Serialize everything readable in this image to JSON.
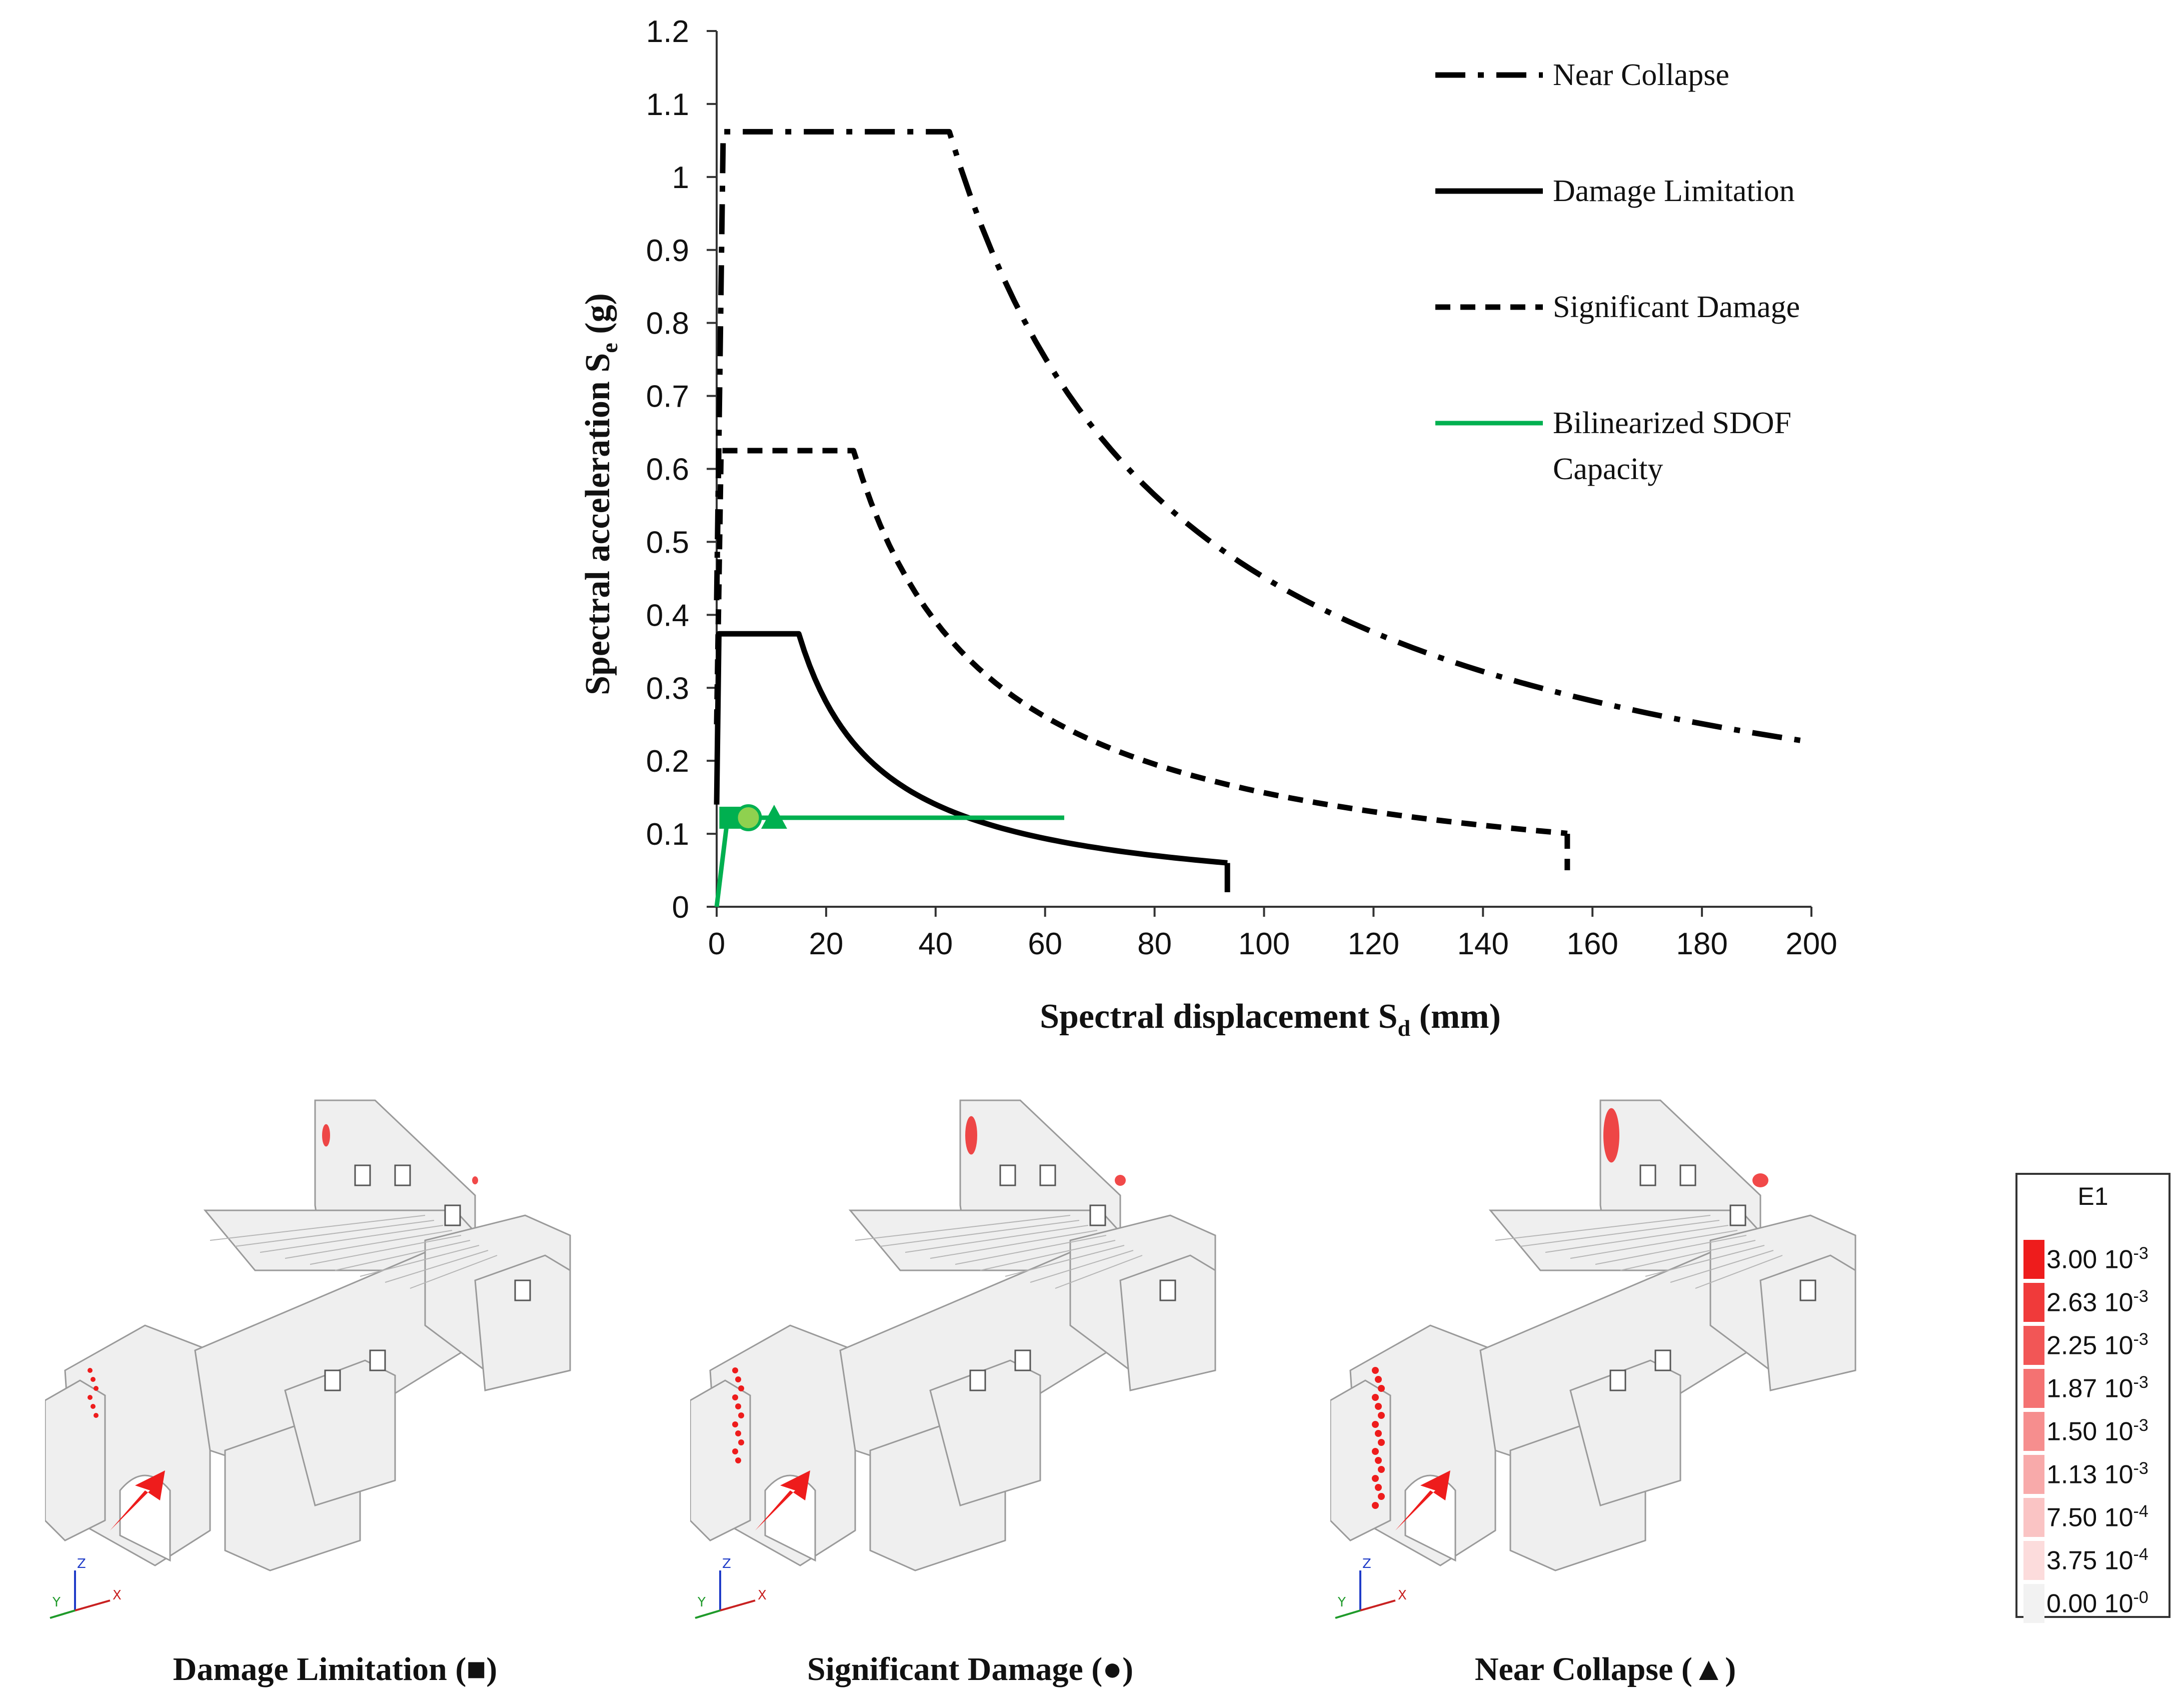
{
  "chart_data": {
    "type": "line",
    "xlabel_main": "Spectral displacement S",
    "xlabel_sub": "d",
    "xlabel_unit": " (mm)",
    "ylabel_main": "Spectral acceleration S",
    "ylabel_sub": "e",
    "ylabel_unit": " (g)",
    "xlim": [
      0,
      200
    ],
    "ylim": [
      0,
      1.2
    ],
    "xticks": [
      "0",
      "20",
      "40",
      "60",
      "80",
      "100",
      "120",
      "140",
      "160",
      "180",
      "200"
    ],
    "yticks": [
      "0",
      "0.1",
      "0.2",
      "0.3",
      "0.4",
      "0.5",
      "0.6",
      "0.7",
      "0.8",
      "0.9",
      "1",
      "1.1",
      "1.2"
    ],
    "series": [
      {
        "name": "Near Collapse",
        "style": "dashdot",
        "color": "#000000",
        "plateau": 1.062,
        "corner_x": [
          1.2,
          42.5
        ],
        "end_x": 200,
        "x": [
          0,
          1.2,
          42.5,
          50,
          60,
          70,
          80,
          90,
          100,
          120,
          140,
          160,
          180,
          200
        ],
        "y": [
          0.42,
          1.062,
          1.062,
          0.9,
          0.752,
          0.644,
          0.564,
          0.501,
          0.451,
          0.376,
          0.322,
          0.282,
          0.251,
          0.225
        ]
      },
      {
        "name": "Damage Limitation",
        "style": "solid",
        "color": "#000000",
        "plateau": 0.374,
        "corner_x": [
          0.4,
          15
        ],
        "end_x": 93.3,
        "x": [
          0,
          0.4,
          15,
          20,
          30,
          40,
          50,
          60,
          70,
          80,
          93.3
        ],
        "y": [
          0.14,
          0.374,
          0.374,
          0.28,
          0.187,
          0.14,
          0.112,
          0.093,
          0.08,
          0.07,
          0.06
        ]
      },
      {
        "name": "Significant Damage",
        "style": "dashed",
        "color": "#000000",
        "plateau": 0.625,
        "corner_x": [
          0.8,
          25
        ],
        "end_x": 155.4,
        "x": [
          0,
          0.8,
          25,
          30,
          40,
          50,
          60,
          80,
          100,
          120,
          140,
          155.4
        ],
        "y": [
          0.25,
          0.625,
          0.625,
          0.521,
          0.391,
          0.313,
          0.26,
          0.195,
          0.156,
          0.13,
          0.112,
          0.1
        ]
      },
      {
        "name": "Bilinearized SDOF",
        "name_line2": "Capacity",
        "style": "solid",
        "color": "#00b050",
        "x": [
          0,
          2,
          63.5
        ],
        "y": [
          0,
          0.122,
          0.122
        ]
      }
    ],
    "markers": [
      {
        "shape": "square",
        "x": 2.5,
        "y": 0.122,
        "label": "Damage Limitation"
      },
      {
        "shape": "circle",
        "x": 5.8,
        "y": 0.122,
        "label": "Significant Damage"
      },
      {
        "shape": "triangle",
        "x": 10.5,
        "y": 0.122,
        "label": "Near Collapse"
      }
    ],
    "vertical_drops": [
      {
        "series": "Damage Limitation",
        "x": 93.3,
        "y_from": 0.06,
        "y_to": 0.02
      },
      {
        "series": "Significant Damage",
        "x": 155.4,
        "y_from": 0.1,
        "y_to": 0.05
      }
    ],
    "legend_position": "top-right"
  },
  "panels": [
    {
      "caption": "Damage Limitation (■)",
      "axis_labels": {
        "x": "X",
        "y": "Y",
        "z": "Z"
      }
    },
    {
      "caption": "Significant Damage (●)",
      "axis_labels": {
        "x": "X",
        "y": "Y",
        "z": "Z"
      }
    },
    {
      "caption": "Near Collapse (▲)",
      "axis_labels": {
        "x": "X",
        "y": "Y",
        "z": "Z"
      }
    }
  ],
  "colorbar": {
    "title": "E1",
    "entries": [
      {
        "mantissa": "3.00 10",
        "exp": "-3",
        "color": "#ee1c1c"
      },
      {
        "mantissa": "2.63 10",
        "exp": "-3",
        "color": "#f03a3a"
      },
      {
        "mantissa": "2.25 10",
        "exp": "-3",
        "color": "#f25656"
      },
      {
        "mantissa": "1.87 10",
        "exp": "-3",
        "color": "#f47272"
      },
      {
        "mantissa": "1.50 10",
        "exp": "-3",
        "color": "#f68e8e"
      },
      {
        "mantissa": "1.13 10",
        "exp": "-3",
        "color": "#f8aaaa"
      },
      {
        "mantissa": "7.50 10",
        "exp": "-4",
        "color": "#fac4c4"
      },
      {
        "mantissa": "3.75 10",
        "exp": "-4",
        "color": "#fcdcdc"
      },
      {
        "mantissa": "0.00 10",
        "exp": "-0",
        "color": "#f2f2f2"
      }
    ]
  }
}
